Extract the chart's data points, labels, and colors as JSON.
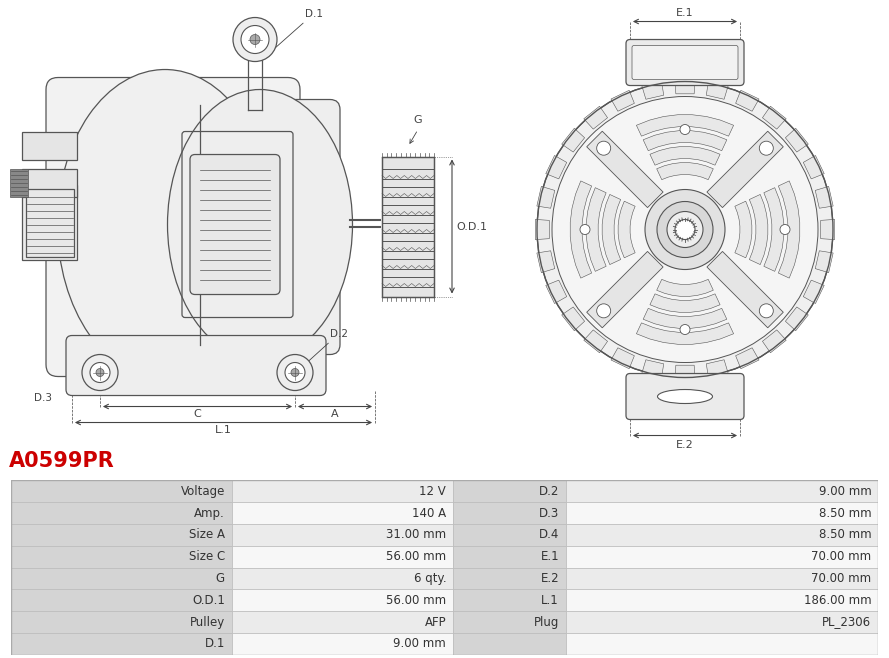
{
  "title": "A0599PR",
  "title_color": "#cc0000",
  "table_data": [
    [
      "Voltage",
      "12 V",
      "D.2",
      "9.00 mm"
    ],
    [
      "Amp.",
      "140 A",
      "D.3",
      "8.50 mm"
    ],
    [
      "Size A",
      "31.00 mm",
      "D.4",
      "8.50 mm"
    ],
    [
      "Size C",
      "56.00 mm",
      "E.1",
      "70.00 mm"
    ],
    [
      "G",
      "6 qty.",
      "E.2",
      "70.00 mm"
    ],
    [
      "O.D.1",
      "56.00 mm",
      "L.1",
      "186.00 mm"
    ],
    [
      "Pulley",
      "AFP",
      "Plug",
      "PL_2306"
    ],
    [
      "D.1",
      "9.00 mm",
      "",
      ""
    ]
  ],
  "header_bg": "#d4d4d4",
  "row_bg_even": "#ebebeb",
  "row_bg_odd": "#f7f7f7",
  "background_color": "#ffffff",
  "line_color": "#555555",
  "dim_color": "#444444"
}
